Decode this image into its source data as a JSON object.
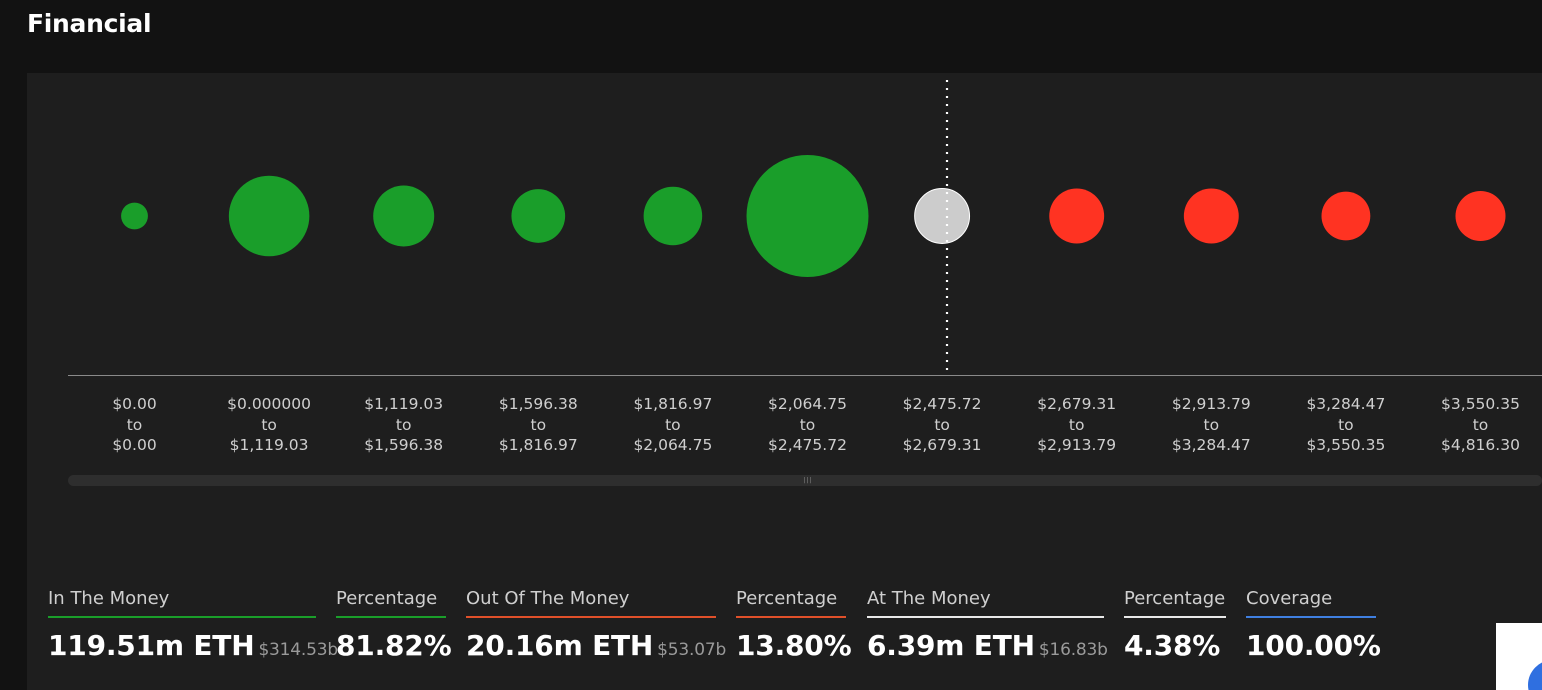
{
  "title": "Financial",
  "colors": {
    "in_the_money": "#1a9e2a",
    "out_of_the_money": "#ff3322",
    "at_the_money": "#cccccc",
    "coverage": "#3f7fe0"
  },
  "chart_data": {
    "type": "scatter",
    "current_price_marker": "dotted vertical line at the $2,475.72 to $2,679.31 range",
    "categories": [
      [
        "$0.00",
        "to",
        "$0.00"
      ],
      [
        "$0.000000",
        "to",
        "$1,119.03"
      ],
      [
        "$1,119.03",
        "to",
        "$1,596.38"
      ],
      [
        "$1,596.38",
        "to",
        "$1,816.97"
      ],
      [
        "$1,816.97",
        "to",
        "$2,064.75"
      ],
      [
        "$2,064.75",
        "to",
        "$2,475.72"
      ],
      [
        "$2,475.72",
        "to",
        "$2,679.31"
      ],
      [
        "$2,679.31",
        "to",
        "$2,913.79"
      ],
      [
        "$2,913.79",
        "to",
        "$3,284.47"
      ],
      [
        "$3,284.47",
        "to",
        "$3,550.35"
      ],
      [
        "$3,550.35",
        "to",
        "$4,816.30"
      ]
    ],
    "bubbles": [
      {
        "status": "in",
        "relative_size": 0.22
      },
      {
        "status": "in",
        "relative_size": 0.66
      },
      {
        "status": "in",
        "relative_size": 0.5
      },
      {
        "status": "in",
        "relative_size": 0.44
      },
      {
        "status": "in",
        "relative_size": 0.48
      },
      {
        "status": "in",
        "relative_size": 1.0
      },
      {
        "status": "at",
        "relative_size": 0.45
      },
      {
        "status": "out",
        "relative_size": 0.45
      },
      {
        "status": "out",
        "relative_size": 0.45
      },
      {
        "status": "out",
        "relative_size": 0.4
      },
      {
        "status": "out",
        "relative_size": 0.41
      }
    ]
  },
  "summary": {
    "in_the_money": {
      "label": "In The Money",
      "value": "119.51m ETH",
      "usd": "$314.53b"
    },
    "in_percentage": {
      "label": "Percentage",
      "value": "81.82%"
    },
    "out_of_the_money": {
      "label": "Out Of The Money",
      "value": "20.16m ETH",
      "usd": "$53.07b"
    },
    "out_percentage": {
      "label": "Percentage",
      "value": "13.80%"
    },
    "at_the_money": {
      "label": "At The Money",
      "value": "6.39m ETH",
      "usd": "$16.83b"
    },
    "at_percentage": {
      "label": "Percentage",
      "value": "4.38%"
    },
    "coverage": {
      "label": "Coverage",
      "value": "100.00%"
    }
  }
}
